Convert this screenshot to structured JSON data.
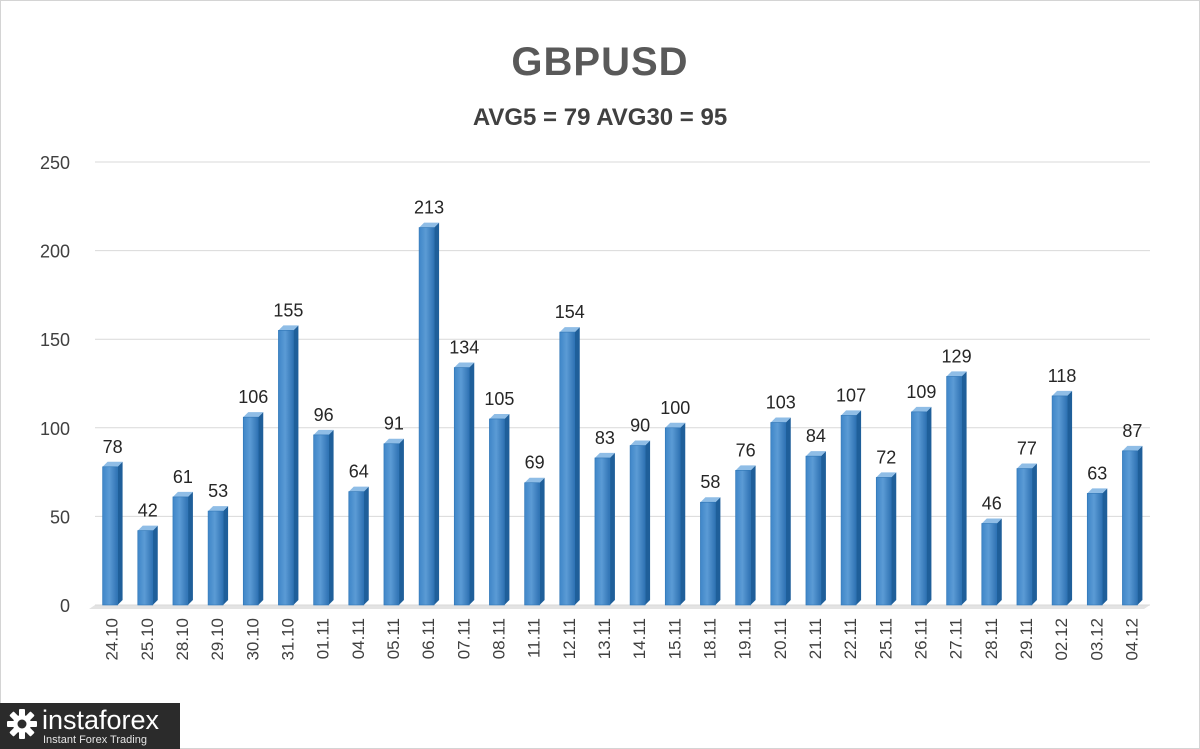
{
  "chart_data": {
    "type": "bar",
    "title": "GBPUSD",
    "subtitle": "AVG5 = 79 AVG30 = 95",
    "categories": [
      "24.10",
      "25.10",
      "28.10",
      "29.10",
      "30.10",
      "31.10",
      "01.11",
      "04.11",
      "05.11",
      "06.11",
      "07.11",
      "08.11",
      "11.11",
      "12.11",
      "13.11",
      "14.11",
      "15.11",
      "18.11",
      "19.11",
      "20.11",
      "21.11",
      "22.11",
      "25.11",
      "26.11",
      "27.11",
      "28.11",
      "29.11",
      "02.12",
      "03.12",
      "04.12"
    ],
    "values": [
      78,
      42,
      61,
      53,
      106,
      155,
      96,
      64,
      91,
      213,
      134,
      105,
      69,
      154,
      83,
      90,
      100,
      58,
      76,
      103,
      84,
      107,
      72,
      109,
      129,
      46,
      77,
      118,
      63,
      87
    ],
    "ylim": [
      0,
      250
    ],
    "yticks": [
      0,
      50,
      100,
      150,
      200,
      250
    ],
    "grid": true,
    "bar_color": "#5b9bd5",
    "bar_edge_color": "#2e75b6",
    "data_labels": true
  },
  "watermark": {
    "brand": "instaforex",
    "tagline": "Instant Forex Trading",
    "icon": "gear-icon"
  }
}
